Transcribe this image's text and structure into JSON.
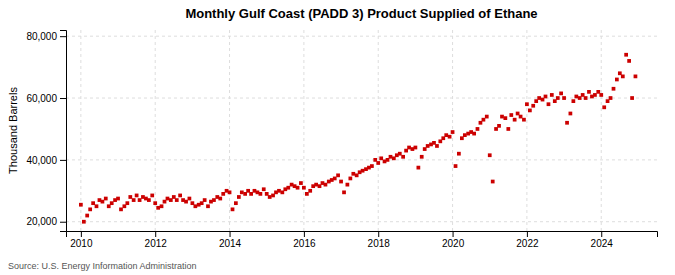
{
  "chart_data": {
    "type": "scatter",
    "title": "Monthly Gulf Coast (PADD 3) Product Supplied of Ethane",
    "y_label": "Thousand Barrels",
    "annotations": [
      "Source: U.S. Energy Information Administration"
    ],
    "color": "#cc0000",
    "marker": "square",
    "grid": true,
    "xlim": [
      2009.6,
      2025.5
    ],
    "xticks": [
      2010,
      2012,
      2014,
      2016,
      2018,
      2020,
      2022,
      2024
    ],
    "ylim": [
      17000,
      82000
    ],
    "yticks": [
      {
        "value": 20000,
        "label": "20,000"
      },
      {
        "value": 40000,
        "label": "40,000"
      },
      {
        "value": 60000,
        "label": "60,000"
      },
      {
        "value": 80000,
        "label": "80,000"
      }
    ],
    "x": [
      2010.0,
      2010.08,
      2010.17,
      2010.25,
      2010.33,
      2010.42,
      2010.5,
      2010.58,
      2010.67,
      2010.75,
      2010.83,
      2010.92,
      2011.0,
      2011.08,
      2011.17,
      2011.25,
      2011.33,
      2011.42,
      2011.5,
      2011.58,
      2011.67,
      2011.75,
      2011.83,
      2011.92,
      2012.0,
      2012.08,
      2012.17,
      2012.25,
      2012.33,
      2012.42,
      2012.5,
      2012.58,
      2012.67,
      2012.75,
      2012.83,
      2012.92,
      2013.0,
      2013.08,
      2013.17,
      2013.25,
      2013.33,
      2013.42,
      2013.5,
      2013.58,
      2013.67,
      2013.75,
      2013.83,
      2013.92,
      2014.0,
      2014.08,
      2014.17,
      2014.25,
      2014.33,
      2014.42,
      2014.5,
      2014.58,
      2014.67,
      2014.75,
      2014.83,
      2014.92,
      2015.0,
      2015.08,
      2015.17,
      2015.25,
      2015.33,
      2015.42,
      2015.5,
      2015.58,
      2015.67,
      2015.75,
      2015.83,
      2015.92,
      2016.0,
      2016.08,
      2016.17,
      2016.25,
      2016.33,
      2016.42,
      2016.5,
      2016.58,
      2016.67,
      2016.75,
      2016.83,
      2016.92,
      2017.0,
      2017.08,
      2017.17,
      2017.25,
      2017.33,
      2017.42,
      2017.5,
      2017.58,
      2017.67,
      2017.75,
      2017.83,
      2017.92,
      2018.0,
      2018.08,
      2018.17,
      2018.25,
      2018.33,
      2018.42,
      2018.5,
      2018.58,
      2018.67,
      2018.75,
      2018.83,
      2018.92,
      2019.0,
      2019.08,
      2019.17,
      2019.25,
      2019.33,
      2019.42,
      2019.5,
      2019.58,
      2019.67,
      2019.75,
      2019.83,
      2019.92,
      2020.0,
      2020.08,
      2020.17,
      2020.25,
      2020.33,
      2020.42,
      2020.5,
      2020.58,
      2020.67,
      2020.75,
      2020.83,
      2020.92,
      2021.0,
      2021.08,
      2021.17,
      2021.25,
      2021.33,
      2021.42,
      2021.5,
      2021.58,
      2021.67,
      2021.75,
      2021.83,
      2021.92,
      2022.0,
      2022.08,
      2022.17,
      2022.25,
      2022.33,
      2022.42,
      2022.5,
      2022.58,
      2022.67,
      2022.75,
      2022.83,
      2022.92,
      2023.0,
      2023.08,
      2023.17,
      2023.25,
      2023.33,
      2023.42,
      2023.5,
      2023.58,
      2023.67,
      2023.75,
      2023.83,
      2023.92,
      2024.0,
      2024.08,
      2024.17,
      2024.25,
      2024.33,
      2024.42,
      2024.5,
      2024.58,
      2024.67,
      2024.75,
      2024.83,
      2024.92
    ],
    "values": [
      25500,
      20000,
      22000,
      24000,
      26000,
      25000,
      27000,
      26500,
      27500,
      25000,
      26000,
      27000,
      27500,
      24000,
      25000,
      26000,
      28000,
      27000,
      28500,
      27000,
      28000,
      27500,
      27000,
      28500,
      26000,
      24500,
      25000,
      26500,
      27500,
      27000,
      28000,
      27000,
      28500,
      27000,
      26500,
      27500,
      26000,
      25000,
      25500,
      26000,
      27000,
      25000,
      26500,
      27000,
      28000,
      27500,
      29000,
      30000,
      29500,
      24000,
      26000,
      28000,
      29500,
      29000,
      30000,
      29000,
      30000,
      29500,
      29000,
      30500,
      29000,
      28000,
      28500,
      29500,
      30000,
      29500,
      30500,
      31000,
      32000,
      31500,
      31000,
      32500,
      31000,
      29000,
      30000,
      31500,
      32000,
      31500,
      32500,
      32000,
      33000,
      33500,
      34000,
      35000,
      33000,
      29500,
      32000,
      34000,
      35500,
      35000,
      36000,
      36500,
      37000,
      37500,
      38000,
      40000,
      39000,
      40500,
      39500,
      40000,
      41000,
      40500,
      41500,
      42000,
      41000,
      43000,
      44000,
      43500,
      44000,
      37500,
      41000,
      43500,
      44500,
      45000,
      45500,
      44500,
      46000,
      47000,
      48000,
      47500,
      49000,
      38000,
      42000,
      47000,
      48000,
      48500,
      49000,
      48500,
      50000,
      52000,
      53000,
      54000,
      41500,
      33000,
      50000,
      51000,
      54000,
      53500,
      50000,
      54500,
      53000,
      55000,
      54000,
      53000,
      58000,
      56000,
      57500,
      59000,
      60000,
      59500,
      60500,
      58000,
      61000,
      59000,
      60000,
      61500,
      60000,
      52000,
      55000,
      59000,
      60500,
      60000,
      61000,
      60000,
      62000,
      60500,
      61000,
      62000,
      61000,
      57000,
      59000,
      60000,
      63000,
      66000,
      68000,
      67000,
      74000,
      72000,
      60000,
      67000
    ]
  }
}
